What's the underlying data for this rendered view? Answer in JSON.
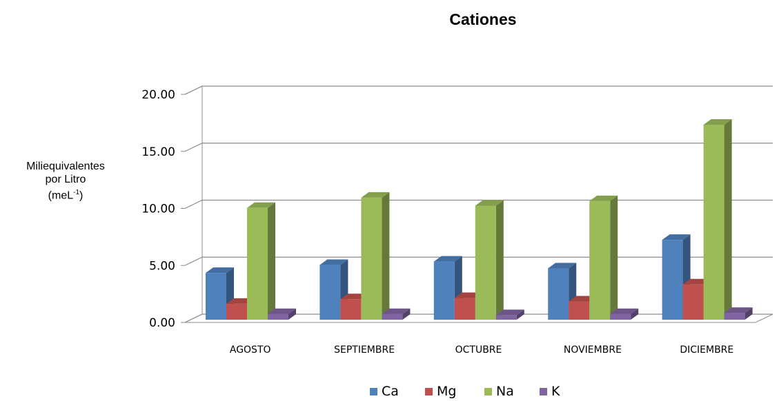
{
  "chart_data": {
    "type": "bar",
    "title": "Cationes",
    "ylabel_main": "Miliequivalentes\npor Litro\n(meL",
    "ylabel_sup": "-1",
    "ylabel_close": ")",
    "categories": [
      "AGOSTO",
      "SEPTIEMBRE",
      "OCTUBRE",
      "NOVIEMBRE",
      "DICIEMBRE"
    ],
    "series": [
      {
        "name": "Ca",
        "color": "#4f81bd",
        "values": [
          4.1,
          4.8,
          5.1,
          4.5,
          7.0
        ]
      },
      {
        "name": "Mg",
        "color": "#c0504d",
        "values": [
          1.4,
          1.8,
          1.9,
          1.6,
          3.1
        ]
      },
      {
        "name": "Na",
        "color": "#9bbb59",
        "values": [
          9.8,
          10.7,
          10.0,
          10.4,
          17.1
        ]
      },
      {
        "name": "K",
        "color": "#8064a2",
        "values": [
          0.5,
          0.5,
          0.4,
          0.5,
          0.6
        ]
      }
    ],
    "yticks": [
      "0.00",
      "5.00",
      "10.00",
      "15.00",
      "20.00"
    ],
    "ylim": [
      0,
      20
    ],
    "grid": true,
    "legend_position": "bottom"
  }
}
